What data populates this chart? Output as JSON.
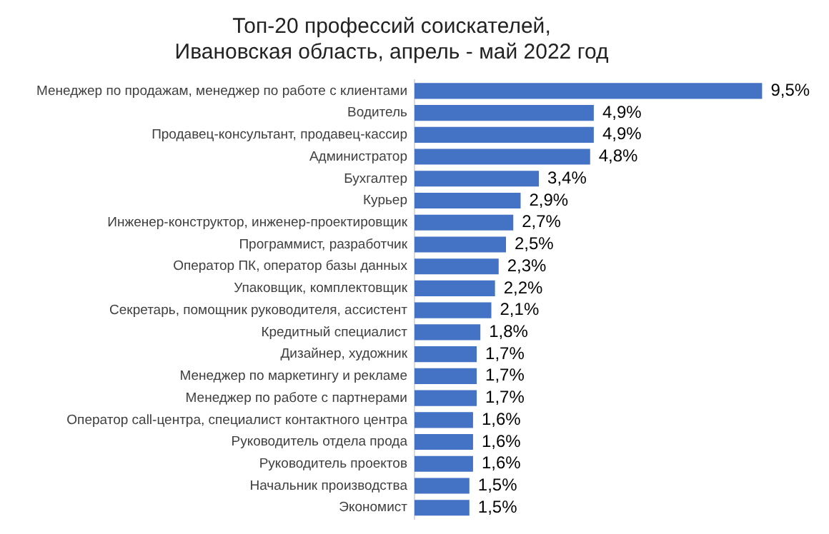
{
  "chart_data": {
    "type": "bar",
    "orientation": "horizontal",
    "title": [
      "Топ-20 профессий соискателей,",
      "Ивановская область, апрель - май 2022 год"
    ],
    "categories": [
      "Менеджер по продажам, менеджер по работе с клиентами",
      "Водитель",
      "Продавец-консультант, продавец-кассир",
      "Администратор",
      "Бухгалтер",
      "Курьер",
      "Инженер-конструктор, инженер-проектировщик",
      "Программист, разработчик",
      "Оператор ПК, оператор базы данных",
      "Упаковщик, комплектовщик",
      "Секретарь, помощник руководителя, ассистент",
      "Кредитный специалист",
      "Дизайнер, художник",
      "Менеджер по маркетингу и рекламе",
      "Менеджер по работе с партнерами",
      "Оператор call-центра, специалист контактного центра",
      "Руководитель отдела прода",
      "Руководитель проектов",
      "Начальник производства",
      "Экономист"
    ],
    "values": [
      9.5,
      4.9,
      4.9,
      4.8,
      3.4,
      2.9,
      2.7,
      2.5,
      2.3,
      2.2,
      2.1,
      1.8,
      1.7,
      1.7,
      1.7,
      1.6,
      1.6,
      1.6,
      1.5,
      1.5
    ],
    "value_labels": [
      "9,5%",
      "4,9%",
      "4,9%",
      "4,8%",
      "3,4%",
      "2,9%",
      "2,7%",
      "2,5%",
      "2,3%",
      "2,2%",
      "2,1%",
      "1,8%",
      "1,7%",
      "1,7%",
      "1,7%",
      "1,6%",
      "1,6%",
      "1,6%",
      "1,5%",
      "1,5%"
    ],
    "color": "#4472c4",
    "legend": false,
    "tick_labels": "y"
  }
}
